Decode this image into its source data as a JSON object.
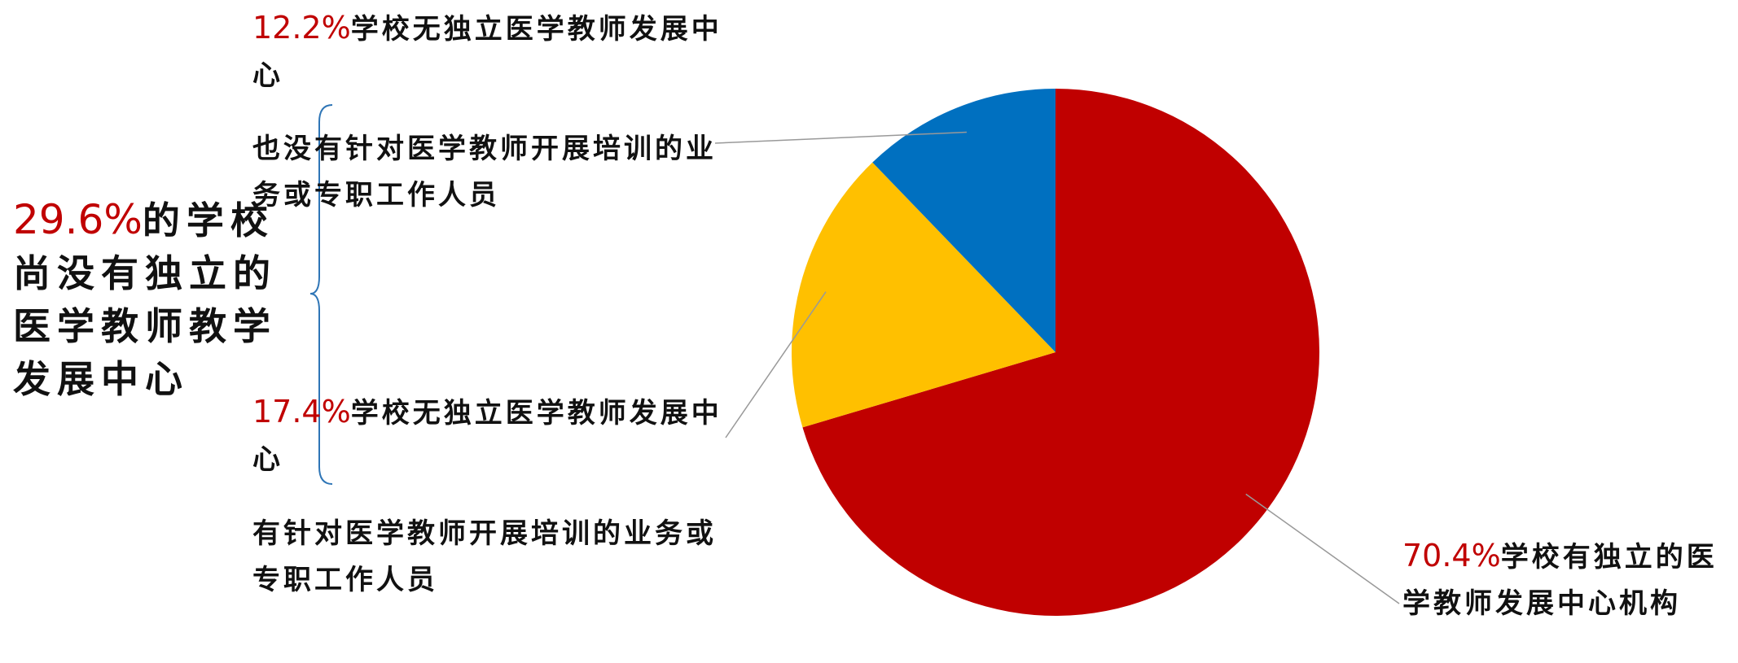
{
  "chart_data": {
    "type": "pie",
    "categories": [
      "学校有独立的医学教师发展中心机构",
      "学校无独立医学教师发展中心",
      "学校无独立医学教师发展中心"
    ],
    "category_notes": [
      null,
      "有针对医学教师开展培训的业务或专职工作人员",
      "也没有针对医学教师开展培训的业务或专职工作人员"
    ],
    "values": [
      70.4,
      17.4,
      12.2
    ],
    "value_labels": [
      "70.4%",
      "17.4%",
      "12.2%"
    ],
    "colors": [
      "#c00000",
      "#ffc000",
      "#0070c0"
    ],
    "annotation": {
      "value_label": "29.6%",
      "text": "的学校尚没有独立的医学教师教学发展中心"
    }
  }
}
